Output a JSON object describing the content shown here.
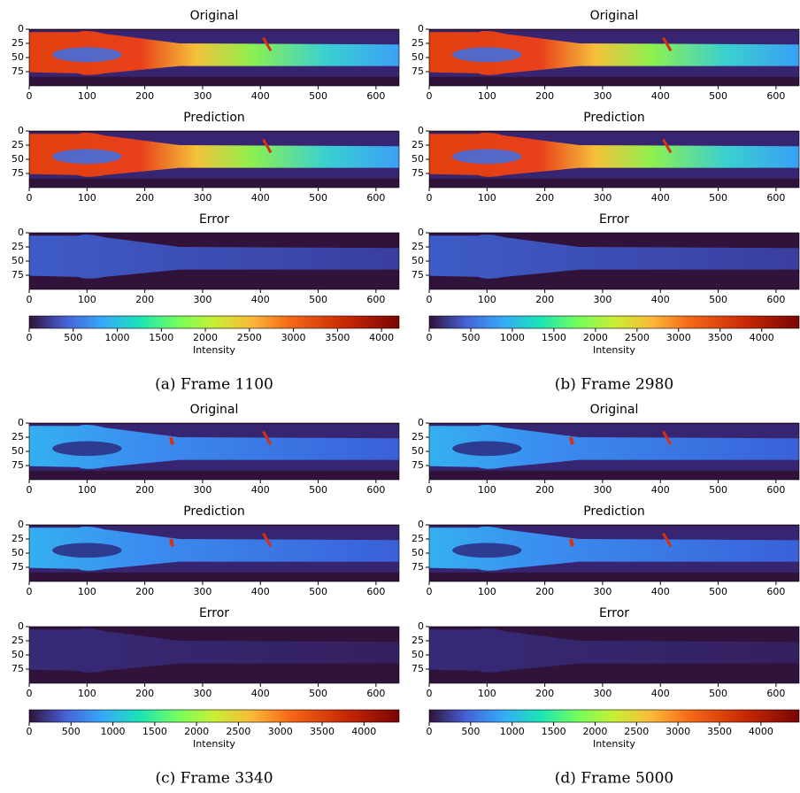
{
  "figures": [
    {
      "caption": "(a) Frame 1100",
      "subplots": [
        {
          "title": "Original",
          "xlim": [
            0,
            640
          ],
          "ylim": [
            0,
            100
          ],
          "xticks": [
            0,
            100,
            200,
            300,
            400,
            500,
            600
          ],
          "yticks": [
            0,
            25,
            50,
            75
          ]
        },
        {
          "title": "Prediction",
          "xlim": [
            0,
            640
          ],
          "ylim": [
            0,
            100
          ],
          "xticks": [
            0,
            100,
            200,
            300,
            400,
            500,
            600
          ],
          "yticks": [
            0,
            25,
            50,
            75
          ]
        },
        {
          "title": "Error",
          "xlim": [
            0,
            640
          ],
          "ylim": [
            0,
            100
          ],
          "xticks": [
            0,
            100,
            200,
            300,
            400,
            500,
            600
          ],
          "yticks": [
            0,
            25,
            50,
            75
          ]
        }
      ],
      "colorbar": {
        "label": "Intensity",
        "lim": [
          0,
          4200
        ],
        "ticks": [
          0,
          500,
          1000,
          1500,
          2000,
          2500,
          3000,
          3500,
          4000
        ]
      }
    },
    {
      "caption": "(b) Frame 2980",
      "subplots": [
        {
          "title": "Original",
          "xlim": [
            0,
            640
          ],
          "ylim": [
            0,
            100
          ],
          "xticks": [
            0,
            100,
            200,
            300,
            400,
            500,
            600
          ],
          "yticks": [
            0,
            25,
            50,
            75
          ]
        },
        {
          "title": "Prediction",
          "xlim": [
            0,
            640
          ],
          "ylim": [
            0,
            100
          ],
          "xticks": [
            0,
            100,
            200,
            300,
            400,
            500,
            600
          ],
          "yticks": [
            0,
            25,
            50,
            75
          ]
        },
        {
          "title": "Error",
          "xlim": [
            0,
            640
          ],
          "ylim": [
            0,
            100
          ],
          "xticks": [
            0,
            100,
            200,
            300,
            400,
            500,
            600
          ],
          "yticks": [
            0,
            25,
            50,
            75
          ]
        }
      ],
      "colorbar": {
        "label": "Intensity",
        "lim": [
          0,
          4450
        ],
        "ticks": [
          0,
          500,
          1000,
          1500,
          2000,
          2500,
          3000,
          3500,
          4000
        ]
      }
    },
    {
      "caption": "(c) Frame 3340",
      "subplots": [
        {
          "title": "Original",
          "xlim": [
            0,
            640
          ],
          "ylim": [
            0,
            100
          ],
          "xticks": [
            0,
            100,
            200,
            300,
            400,
            500,
            600
          ],
          "yticks": [
            0,
            25,
            50,
            75
          ]
        },
        {
          "title": "Prediction",
          "xlim": [
            0,
            640
          ],
          "ylim": [
            0,
            100
          ],
          "xticks": [
            0,
            100,
            200,
            300,
            400,
            500,
            600
          ],
          "yticks": [
            0,
            25,
            50,
            75
          ]
        },
        {
          "title": "Error",
          "xlim": [
            0,
            640
          ],
          "ylim": [
            0,
            100
          ],
          "xticks": [
            0,
            100,
            200,
            300,
            400,
            500,
            600
          ],
          "yticks": [
            0,
            25,
            50,
            75
          ]
        }
      ],
      "colorbar": {
        "label": "Intensity",
        "lim": [
          0,
          4420
        ],
        "ticks": [
          0,
          500,
          1000,
          1500,
          2000,
          2500,
          3000,
          3500,
          4000
        ]
      }
    },
    {
      "caption": "(d) Frame 5000",
      "subplots": [
        {
          "title": "Original",
          "xlim": [
            0,
            640
          ],
          "ylim": [
            0,
            100
          ],
          "xticks": [
            0,
            100,
            200,
            300,
            400,
            500,
            600
          ],
          "yticks": [
            0,
            25,
            50,
            75
          ]
        },
        {
          "title": "Prediction",
          "xlim": [
            0,
            640
          ],
          "ylim": [
            0,
            100
          ],
          "xticks": [
            0,
            100,
            200,
            300,
            400,
            500,
            600
          ],
          "yticks": [
            0,
            25,
            50,
            75
          ]
        },
        {
          "title": "Error",
          "xlim": [
            0,
            640
          ],
          "ylim": [
            0,
            100
          ],
          "xticks": [
            0,
            100,
            200,
            300,
            400,
            500,
            600
          ],
          "yticks": [
            0,
            25,
            50,
            75
          ]
        }
      ],
      "colorbar": {
        "label": "Intensity",
        "lim": [
          0,
          4460
        ],
        "ticks": [
          0,
          500,
          1000,
          1500,
          2000,
          2500,
          3000,
          3500,
          4000
        ]
      }
    }
  ]
}
